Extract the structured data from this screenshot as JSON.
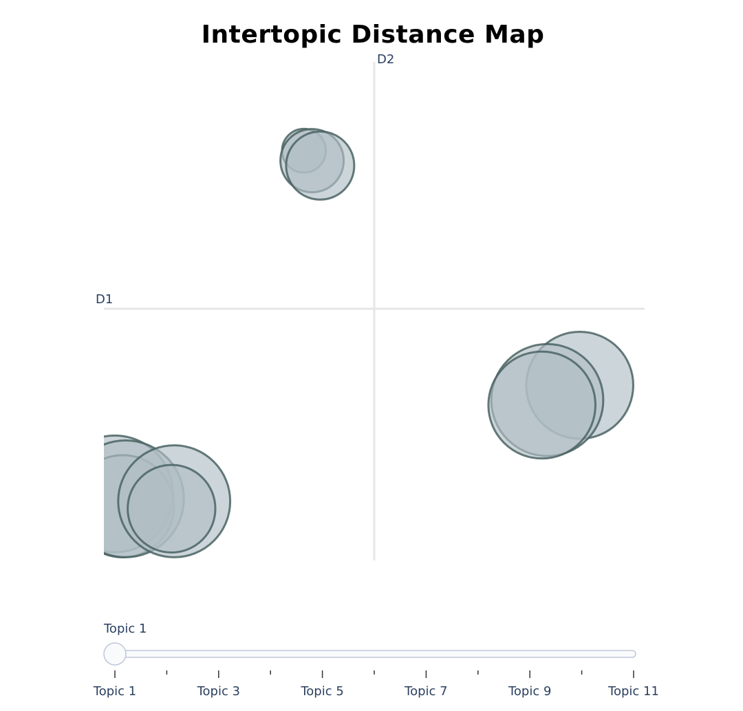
{
  "chart_data": {
    "type": "scatter",
    "title": "Intertopic Distance Map",
    "xaxis_label": "D1",
    "yaxis_label": "D2",
    "xlim": [
      -10,
      10
    ],
    "ylim": [
      -10,
      10
    ],
    "grid": false,
    "bubble_color": "#b0bec5",
    "bubble_edge_color": "#4a6363",
    "topics": [
      {
        "x": -2.6,
        "y": 6.4,
        "size": 0.9
      },
      {
        "x": -2.3,
        "y": 6.0,
        "size": 1.3
      },
      {
        "x": -2.0,
        "y": 5.8,
        "size": 1.4
      },
      {
        "x": 7.6,
        "y": -3.1,
        "size": 2.2
      },
      {
        "x": 6.4,
        "y": -3.7,
        "size": 2.3
      },
      {
        "x": 6.2,
        "y": -3.9,
        "size": 2.2
      },
      {
        "x": -9.6,
        "y": -7.5,
        "size": 2.4
      },
      {
        "x": -9.3,
        "y": -8.0,
        "size": 2.1
      },
      {
        "x": -9.2,
        "y": -7.7,
        "size": 2.4
      },
      {
        "x": -7.4,
        "y": -7.8,
        "size": 2.3
      },
      {
        "x": -7.5,
        "y": -8.1,
        "size": 1.8
      }
    ],
    "slider": {
      "current_label": "Topic 1",
      "current_index": 0,
      "step_count": 11,
      "labels": [
        "Topic 1",
        "Topic 3",
        "Topic 5",
        "Topic 7",
        "Topic 9",
        "Topic 11"
      ]
    }
  }
}
